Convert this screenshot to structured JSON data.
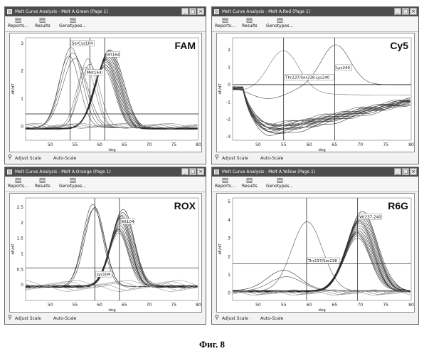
{
  "toolbar": {
    "reports": "Reports...",
    "results": "Results",
    "genotypes": "Genotypes..."
  },
  "footer": {
    "adjust": "Adjust Scale",
    "auto": "Auto-Scale"
  },
  "window_buttons": [
    "_",
    "□",
    "×"
  ],
  "figure_caption": "Фиг. 8",
  "panels": [
    {
      "id": "green",
      "title": "Melt Curve Analysis - Melt A.Green (Page 1)",
      "dye": "FAM",
      "ylabel": "dF/dT",
      "xlabel": "deg",
      "chart_data": {
        "type": "line",
        "xlim": [
          45,
          80
        ],
        "ylim": [
          -0.5,
          3.2
        ],
        "yticks": [
          0,
          1,
          2,
          3
        ],
        "xticks": [
          50,
          55,
          60,
          65,
          70,
          75,
          80
        ],
        "threshold_y": 0.45,
        "cursor_x": [
          54,
          58,
          61
        ],
        "labels": [
          {
            "text": "SerCys164",
            "x": 54.2,
            "y": 2.95
          },
          {
            "text": "Wt164",
            "x": 61.3,
            "y": 2.55
          },
          {
            "text": "Met164",
            "x": 57.2,
            "y": 1.9
          }
        ]
      }
    },
    {
      "id": "red",
      "title": "Melt Curve Analysis - Melt A.Red (Page 1)",
      "dye": "Cy5",
      "ylabel": "dF/dT",
      "xlabel": "deg",
      "chart_data": {
        "type": "line",
        "xlim": [
          45,
          80
        ],
        "ylim": [
          -3.2,
          2.7
        ],
        "yticks": [
          -3,
          -2,
          -1,
          0,
          1,
          2
        ],
        "xticks": [
          50,
          55,
          60,
          65,
          70,
          75,
          80
        ],
        "threshold_y": 0.0,
        "cursor_x": [
          55,
          65
        ],
        "labels": [
          {
            "text": "Thr237/Ser238-Lys240",
            "x": 55.2,
            "y": 0.35
          },
          {
            "text": "Lys240",
            "x": 65.2,
            "y": 0.9
          }
        ]
      }
    },
    {
      "id": "orange",
      "title": "Melt Curve Analysis - Melt A.Orange (Page 1)",
      "dye": "ROX",
      "ylabel": "dF/dT",
      "xlabel": "deg",
      "chart_data": {
        "type": "line",
        "xlim": [
          45,
          80
        ],
        "ylim": [
          -0.5,
          2.8
        ],
        "yticks": [
          0,
          0.5,
          1,
          1.5,
          2,
          2.5
        ],
        "xticks": [
          50,
          55,
          60,
          65,
          70,
          75,
          80
        ],
        "threshold_y": 0.55,
        "cursor_x": [
          59,
          64
        ],
        "labels": [
          {
            "text": "Lys104",
            "x": 59.2,
            "y": 0.3
          },
          {
            "text": "Wt104",
            "x": 64.2,
            "y": 2.0
          }
        ]
      }
    },
    {
      "id": "yellow",
      "title": "Melt Curve Analysis - Melt A.Yellow (Page 1)",
      "dye": "R6G",
      "ylabel": "dF/dT",
      "xlabel": "deg",
      "chart_data": {
        "type": "line",
        "xlim": [
          45,
          80
        ],
        "ylim": [
          -0.4,
          5.2
        ],
        "yticks": [
          0,
          1,
          2,
          3,
          4,
          5
        ],
        "xticks": [
          50,
          55,
          60,
          65,
          70,
          75,
          80
        ],
        "threshold_y": 1.6,
        "cursor_x": [
          59.5,
          69.5
        ],
        "labels": [
          {
            "text": "Thr237/Ser238",
            "x": 59.6,
            "y": 1.7
          },
          {
            "text": "Wt237-240",
            "x": 69.7,
            "y": 4.1
          }
        ]
      }
    }
  ]
}
